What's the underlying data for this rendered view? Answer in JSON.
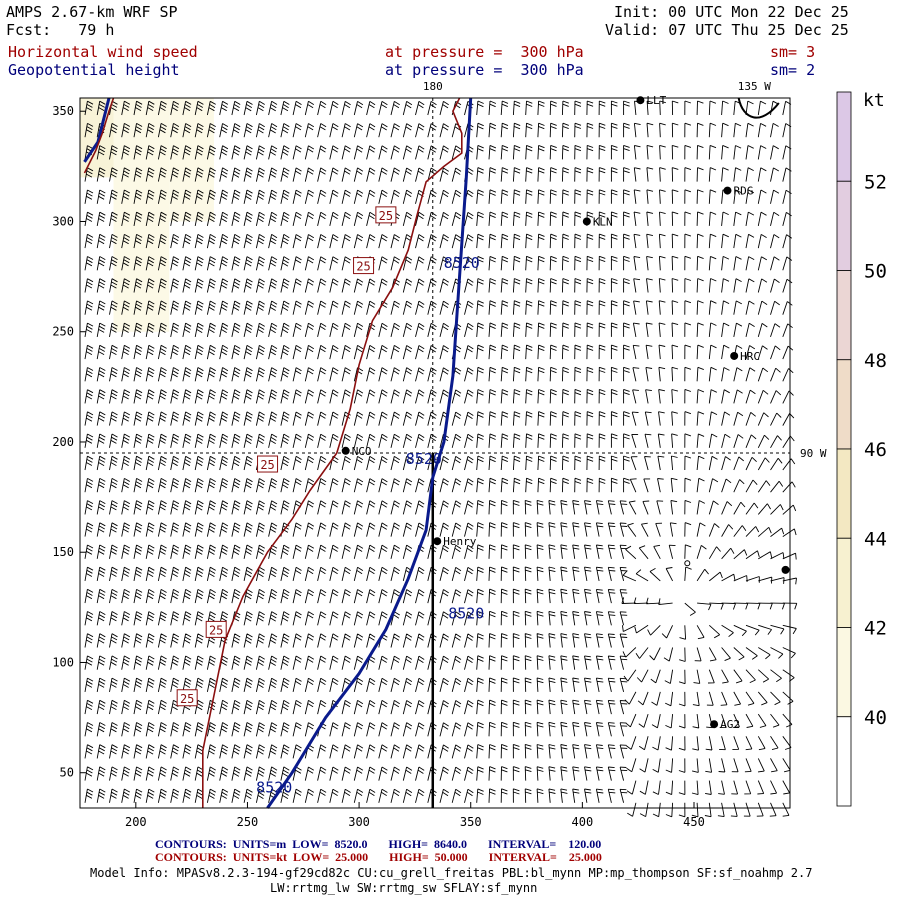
{
  "header": {
    "model_title": "AMPS 2.67-km WRF SP",
    "forecast": "Fcst:   79 h",
    "init": "Init: 00 UTC Mon 22 Dec 25",
    "valid": "Valid: 07 UTC Thu 25 Dec 25",
    "field1_name": "Horizontal wind speed",
    "field1_level": "at pressure =  300 hPa",
    "field1_sm": "sm= 3",
    "field2_name": "Geopotential height",
    "field2_level": "at pressure =  300 hPa",
    "field2_sm": "sm= 2"
  },
  "footer": {
    "contours_blue": "CONTOURS:  UNITS=m  LOW=  8520.0       HIGH=  8640.0       INTERVAL=    120.00",
    "contours_red": "CONTOURS:  UNITS=kt  LOW=  25.000       HIGH=  50.000       INTERVAL=    25.000",
    "model_info_1": "Model Info: MPASv8.2.3-194-gf29cd82c CU:cu_grell_freitas PBL:bl_mynn MP:mp_thompson SF:sf_noahmp 2.7",
    "model_info_2": "LW:rrtmg_lw SW:rrtmg_sw SFLAY:sf_mynn"
  },
  "colors": {
    "height_contour": "#0a1a8c",
    "speed_contour": "#8b1010",
    "barb": "#000000",
    "fill_40": "#fbf8e2",
    "fill_42": "#f7f1d0",
    "fill_44": "#f3e8c2",
    "fill_46": "#efdcc8",
    "fill_48": "#ebd6d4",
    "fill_50": "#e2cde0",
    "fill_52": "#dcc8e6"
  },
  "chart_data": {
    "type": "map",
    "title": "Horizontal wind speed / Geopotential height at 300 hPa",
    "xlim": [
      175,
      493
    ],
    "ylim": [
      34,
      356
    ],
    "x_ticks": [
      200,
      250,
      300,
      350,
      400,
      450
    ],
    "y_ticks": [
      50,
      100,
      150,
      200,
      250,
      300,
      350
    ],
    "meridian_labels": [
      {
        "text": "180",
        "x": 333
      },
      {
        "text": "135 W",
        "x": 477
      },
      {
        "text": "90 W",
        "y": 195
      }
    ],
    "colorbar": {
      "unit": "kt",
      "levels": [
        38,
        40,
        42,
        44,
        46,
        48,
        50,
        52,
        54
      ],
      "labels": [
        "40",
        "42",
        "44",
        "46",
        "48",
        "50",
        "52"
      ]
    },
    "stations": [
      {
        "name": "NCO",
        "x": 294,
        "y": 196
      },
      {
        "name": "Henry",
        "x": 335,
        "y": 155
      },
      {
        "name": "KLN",
        "x": 402,
        "y": 300
      },
      {
        "name": "RDG",
        "x": 465,
        "y": 314
      },
      {
        "name": "HRC",
        "x": 468,
        "y": 239
      },
      {
        "name": "AG2",
        "x": 459,
        "y": 72
      },
      {
        "name": "LLT",
        "x": 426,
        "y": 355
      },
      {
        "name": "",
        "x": 491,
        "y": 142
      }
    ],
    "height_contours": [
      {
        "value": 8520,
        "label": "8520",
        "points": [
          [
            259,
            34
          ],
          [
            270,
            50
          ],
          [
            285,
            75
          ],
          [
            300,
            95
          ],
          [
            312,
            115
          ],
          [
            322,
            138
          ],
          [
            330,
            160
          ],
          [
            333,
            184
          ],
          [
            338,
            200
          ],
          [
            342,
            230
          ],
          [
            344,
            260
          ],
          [
            346,
            290
          ],
          [
            348,
            320
          ],
          [
            350,
            356
          ]
        ]
      },
      {
        "value": 8520,
        "label": "",
        "points": [
          [
            177,
            327
          ],
          [
            183,
            336
          ],
          [
            188,
            356
          ]
        ]
      }
    ],
    "speed_contours": [
      {
        "value": 25,
        "label": "25",
        "points": [
          [
            230,
            34
          ],
          [
            230,
            60
          ],
          [
            234,
            80
          ],
          [
            240,
            110
          ],
          [
            248,
            130
          ],
          [
            259,
            150
          ],
          [
            270,
            165
          ],
          [
            278,
            178
          ],
          [
            290,
            195
          ],
          [
            296,
            215
          ],
          [
            300,
            235
          ],
          [
            306,
            255
          ],
          [
            315,
            270
          ],
          [
            322,
            287
          ],
          [
            326,
            303
          ],
          [
            330,
            318
          ],
          [
            338,
            325
          ],
          [
            346,
            331
          ],
          [
            346,
            340
          ],
          [
            342,
            350
          ],
          [
            345,
            356
          ]
        ]
      },
      {
        "value": 25,
        "label": "",
        "points": [
          [
            177,
            322
          ],
          [
            182,
            332
          ],
          [
            185,
            340
          ],
          [
            188,
            350
          ],
          [
            190,
            356
          ]
        ]
      }
    ],
    "speed_fill_patches": [
      {
        "level": 42,
        "x": [
          175,
          190
        ],
        "y": [
          320,
          356
        ]
      },
      {
        "level": 40,
        "x": [
          190,
          215
        ],
        "y": [
          250,
          356
        ]
      },
      {
        "level": 40,
        "x": [
          215,
          235
        ],
        "y": [
          300,
          356
        ]
      }
    ]
  }
}
